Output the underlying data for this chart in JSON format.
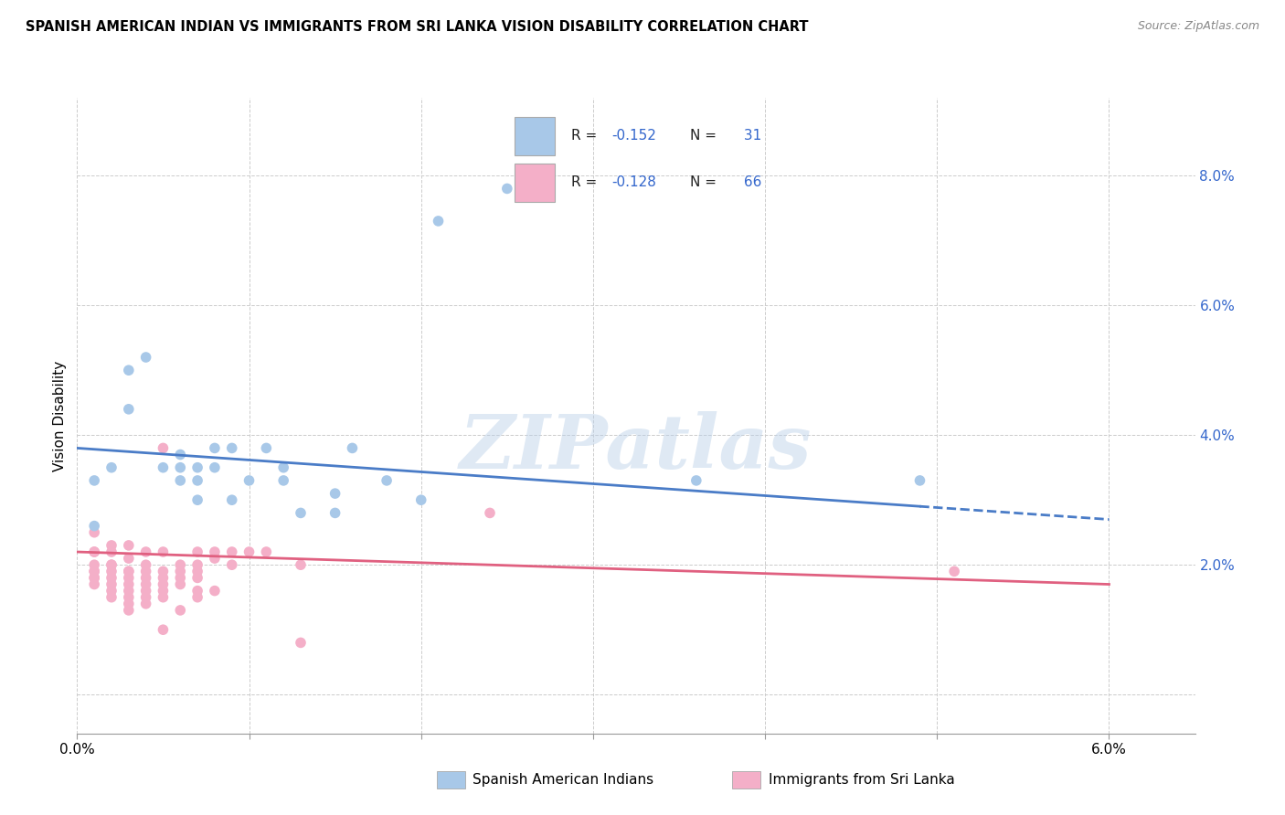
{
  "title": "SPANISH AMERICAN INDIAN VS IMMIGRANTS FROM SRI LANKA VISION DISABILITY CORRELATION CHART",
  "source": "Source: ZipAtlas.com",
  "ylabel": "Vision Disability",
  "y_ticks": [
    0.0,
    0.02,
    0.04,
    0.06,
    0.08
  ],
  "y_tick_labels": [
    "",
    "2.0%",
    "4.0%",
    "6.0%",
    "8.0%"
  ],
  "x_tick_positions": [
    0.0,
    0.01,
    0.02,
    0.03,
    0.04,
    0.05,
    0.06
  ],
  "x_tick_labels": [
    "0.0%",
    "",
    "",
    "",
    "",
    "",
    "6.0%"
  ],
  "watermark": "ZIPatlas",
  "legend_blue_label": "Spanish American Indians",
  "legend_pink_label": "Immigrants from Sri Lanka",
  "blue_color": "#a8c8e8",
  "pink_color": "#f4afc8",
  "blue_line_color": "#4a7cc7",
  "pink_line_color": "#e06080",
  "legend_r_color": "#3366cc",
  "blue_scatter": [
    [
      0.001,
      0.033
    ],
    [
      0.002,
      0.035
    ],
    [
      0.001,
      0.026
    ],
    [
      0.003,
      0.05
    ],
    [
      0.004,
      0.052
    ],
    [
      0.003,
      0.044
    ],
    [
      0.005,
      0.035
    ],
    [
      0.006,
      0.035
    ],
    [
      0.006,
      0.037
    ],
    [
      0.007,
      0.035
    ],
    [
      0.006,
      0.033
    ],
    [
      0.007,
      0.033
    ],
    [
      0.007,
      0.03
    ],
    [
      0.008,
      0.035
    ],
    [
      0.008,
      0.038
    ],
    [
      0.009,
      0.038
    ],
    [
      0.009,
      0.03
    ],
    [
      0.01,
      0.033
    ],
    [
      0.011,
      0.038
    ],
    [
      0.012,
      0.033
    ],
    [
      0.012,
      0.035
    ],
    [
      0.013,
      0.028
    ],
    [
      0.015,
      0.028
    ],
    [
      0.015,
      0.031
    ],
    [
      0.016,
      0.038
    ],
    [
      0.018,
      0.033
    ],
    [
      0.02,
      0.03
    ],
    [
      0.021,
      0.073
    ],
    [
      0.025,
      0.078
    ],
    [
      0.036,
      0.033
    ],
    [
      0.049,
      0.033
    ]
  ],
  "pink_scatter": [
    [
      0.001,
      0.022
    ],
    [
      0.001,
      0.022
    ],
    [
      0.001,
      0.02
    ],
    [
      0.001,
      0.025
    ],
    [
      0.001,
      0.019
    ],
    [
      0.001,
      0.018
    ],
    [
      0.001,
      0.018
    ],
    [
      0.001,
      0.017
    ],
    [
      0.001,
      0.019
    ],
    [
      0.002,
      0.022
    ],
    [
      0.002,
      0.023
    ],
    [
      0.002,
      0.02
    ],
    [
      0.002,
      0.019
    ],
    [
      0.002,
      0.018
    ],
    [
      0.002,
      0.017
    ],
    [
      0.002,
      0.016
    ],
    [
      0.002,
      0.015
    ],
    [
      0.002,
      0.02
    ],
    [
      0.003,
      0.021
    ],
    [
      0.003,
      0.019
    ],
    [
      0.003,
      0.023
    ],
    [
      0.003,
      0.019
    ],
    [
      0.003,
      0.018
    ],
    [
      0.003,
      0.017
    ],
    [
      0.003,
      0.016
    ],
    [
      0.003,
      0.015
    ],
    [
      0.003,
      0.014
    ],
    [
      0.003,
      0.013
    ],
    [
      0.004,
      0.022
    ],
    [
      0.004,
      0.02
    ],
    [
      0.004,
      0.019
    ],
    [
      0.004,
      0.018
    ],
    [
      0.004,
      0.017
    ],
    [
      0.004,
      0.016
    ],
    [
      0.004,
      0.015
    ],
    [
      0.004,
      0.014
    ],
    [
      0.005,
      0.038
    ],
    [
      0.005,
      0.022
    ],
    [
      0.005,
      0.019
    ],
    [
      0.005,
      0.018
    ],
    [
      0.005,
      0.017
    ],
    [
      0.005,
      0.016
    ],
    [
      0.005,
      0.015
    ],
    [
      0.005,
      0.01
    ],
    [
      0.006,
      0.02
    ],
    [
      0.006,
      0.019
    ],
    [
      0.006,
      0.018
    ],
    [
      0.006,
      0.017
    ],
    [
      0.006,
      0.013
    ],
    [
      0.007,
      0.022
    ],
    [
      0.007,
      0.02
    ],
    [
      0.007,
      0.019
    ],
    [
      0.007,
      0.018
    ],
    [
      0.007,
      0.016
    ],
    [
      0.007,
      0.015
    ],
    [
      0.008,
      0.022
    ],
    [
      0.008,
      0.021
    ],
    [
      0.008,
      0.016
    ],
    [
      0.009,
      0.02
    ],
    [
      0.009,
      0.022
    ],
    [
      0.01,
      0.022
    ],
    [
      0.011,
      0.022
    ],
    [
      0.013,
      0.02
    ],
    [
      0.013,
      0.008
    ],
    [
      0.024,
      0.028
    ],
    [
      0.051,
      0.019
    ]
  ],
  "blue_trendline": [
    [
      0.0,
      0.038
    ],
    [
      0.06,
      0.027
    ]
  ],
  "pink_trendline": [
    [
      0.0,
      0.022
    ],
    [
      0.06,
      0.017
    ]
  ],
  "blue_trendline_dashed_start": 0.049,
  "xlim": [
    0.0,
    0.065
  ],
  "ylim": [
    -0.006,
    0.092
  ],
  "background_color": "#ffffff",
  "grid_color": "#cccccc"
}
